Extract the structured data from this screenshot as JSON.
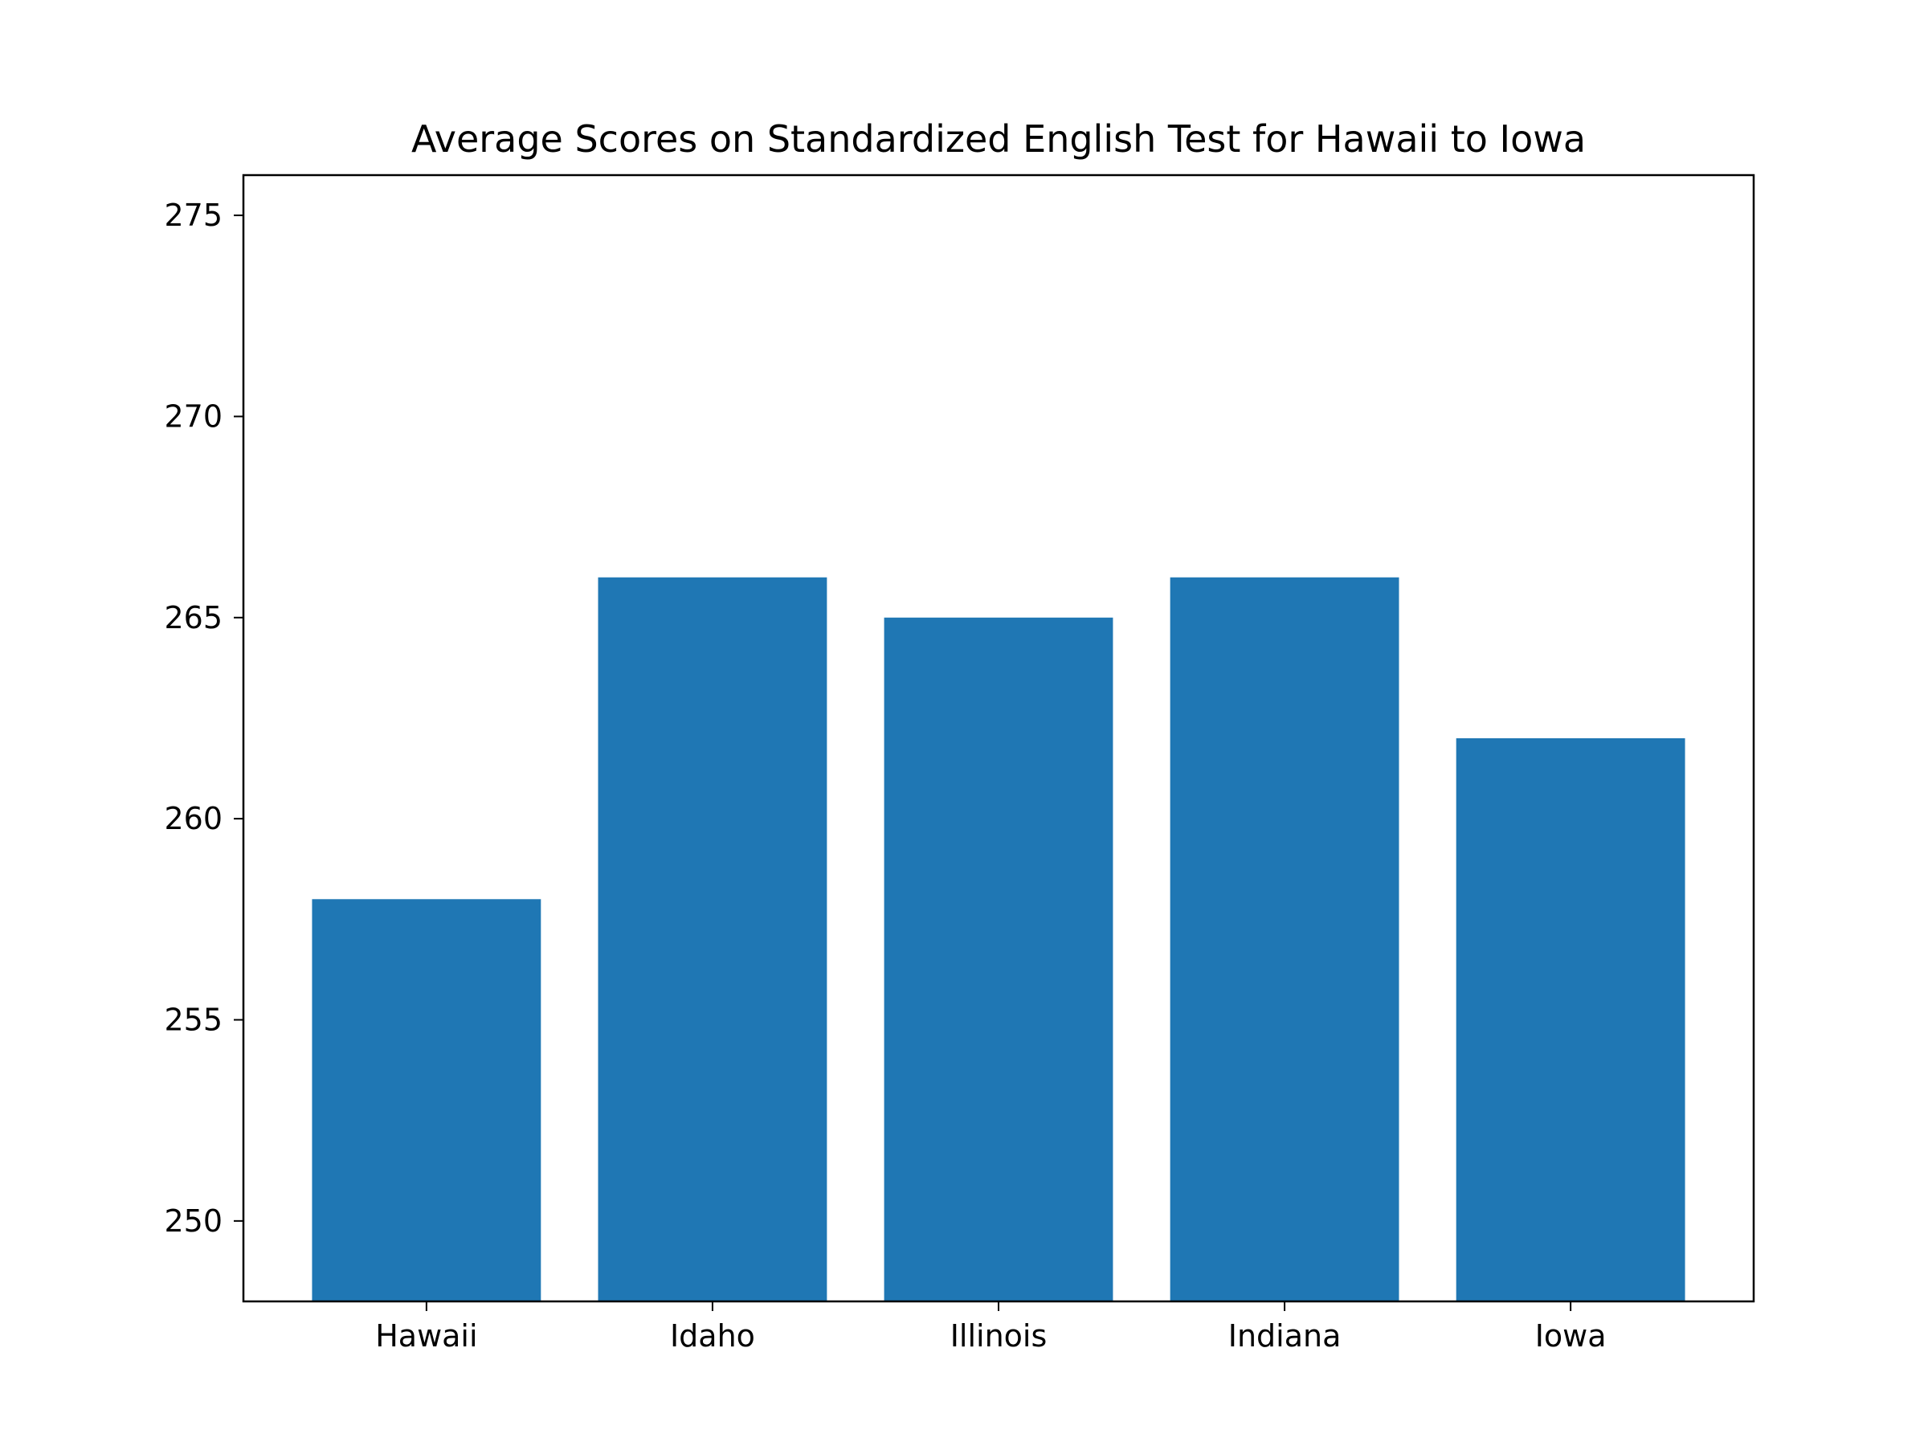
{
  "chart_data": {
    "type": "bar",
    "title": "Average Scores on Standardized English Test for Hawaii to Iowa",
    "xlabel": "",
    "ylabel": "",
    "categories": [
      "Hawaii",
      "Idaho",
      "Illinois",
      "Indiana",
      "Iowa"
    ],
    "values": [
      258,
      266,
      265,
      266,
      262
    ],
    "ylim": [
      248,
      276
    ],
    "yticks": [
      250,
      255,
      260,
      265,
      270,
      275
    ],
    "ytick_labels": [
      "250",
      "255",
      "260",
      "265",
      "270",
      "275"
    ],
    "grid": false,
    "legend": "none",
    "bar_color": "#1f77b4"
  }
}
